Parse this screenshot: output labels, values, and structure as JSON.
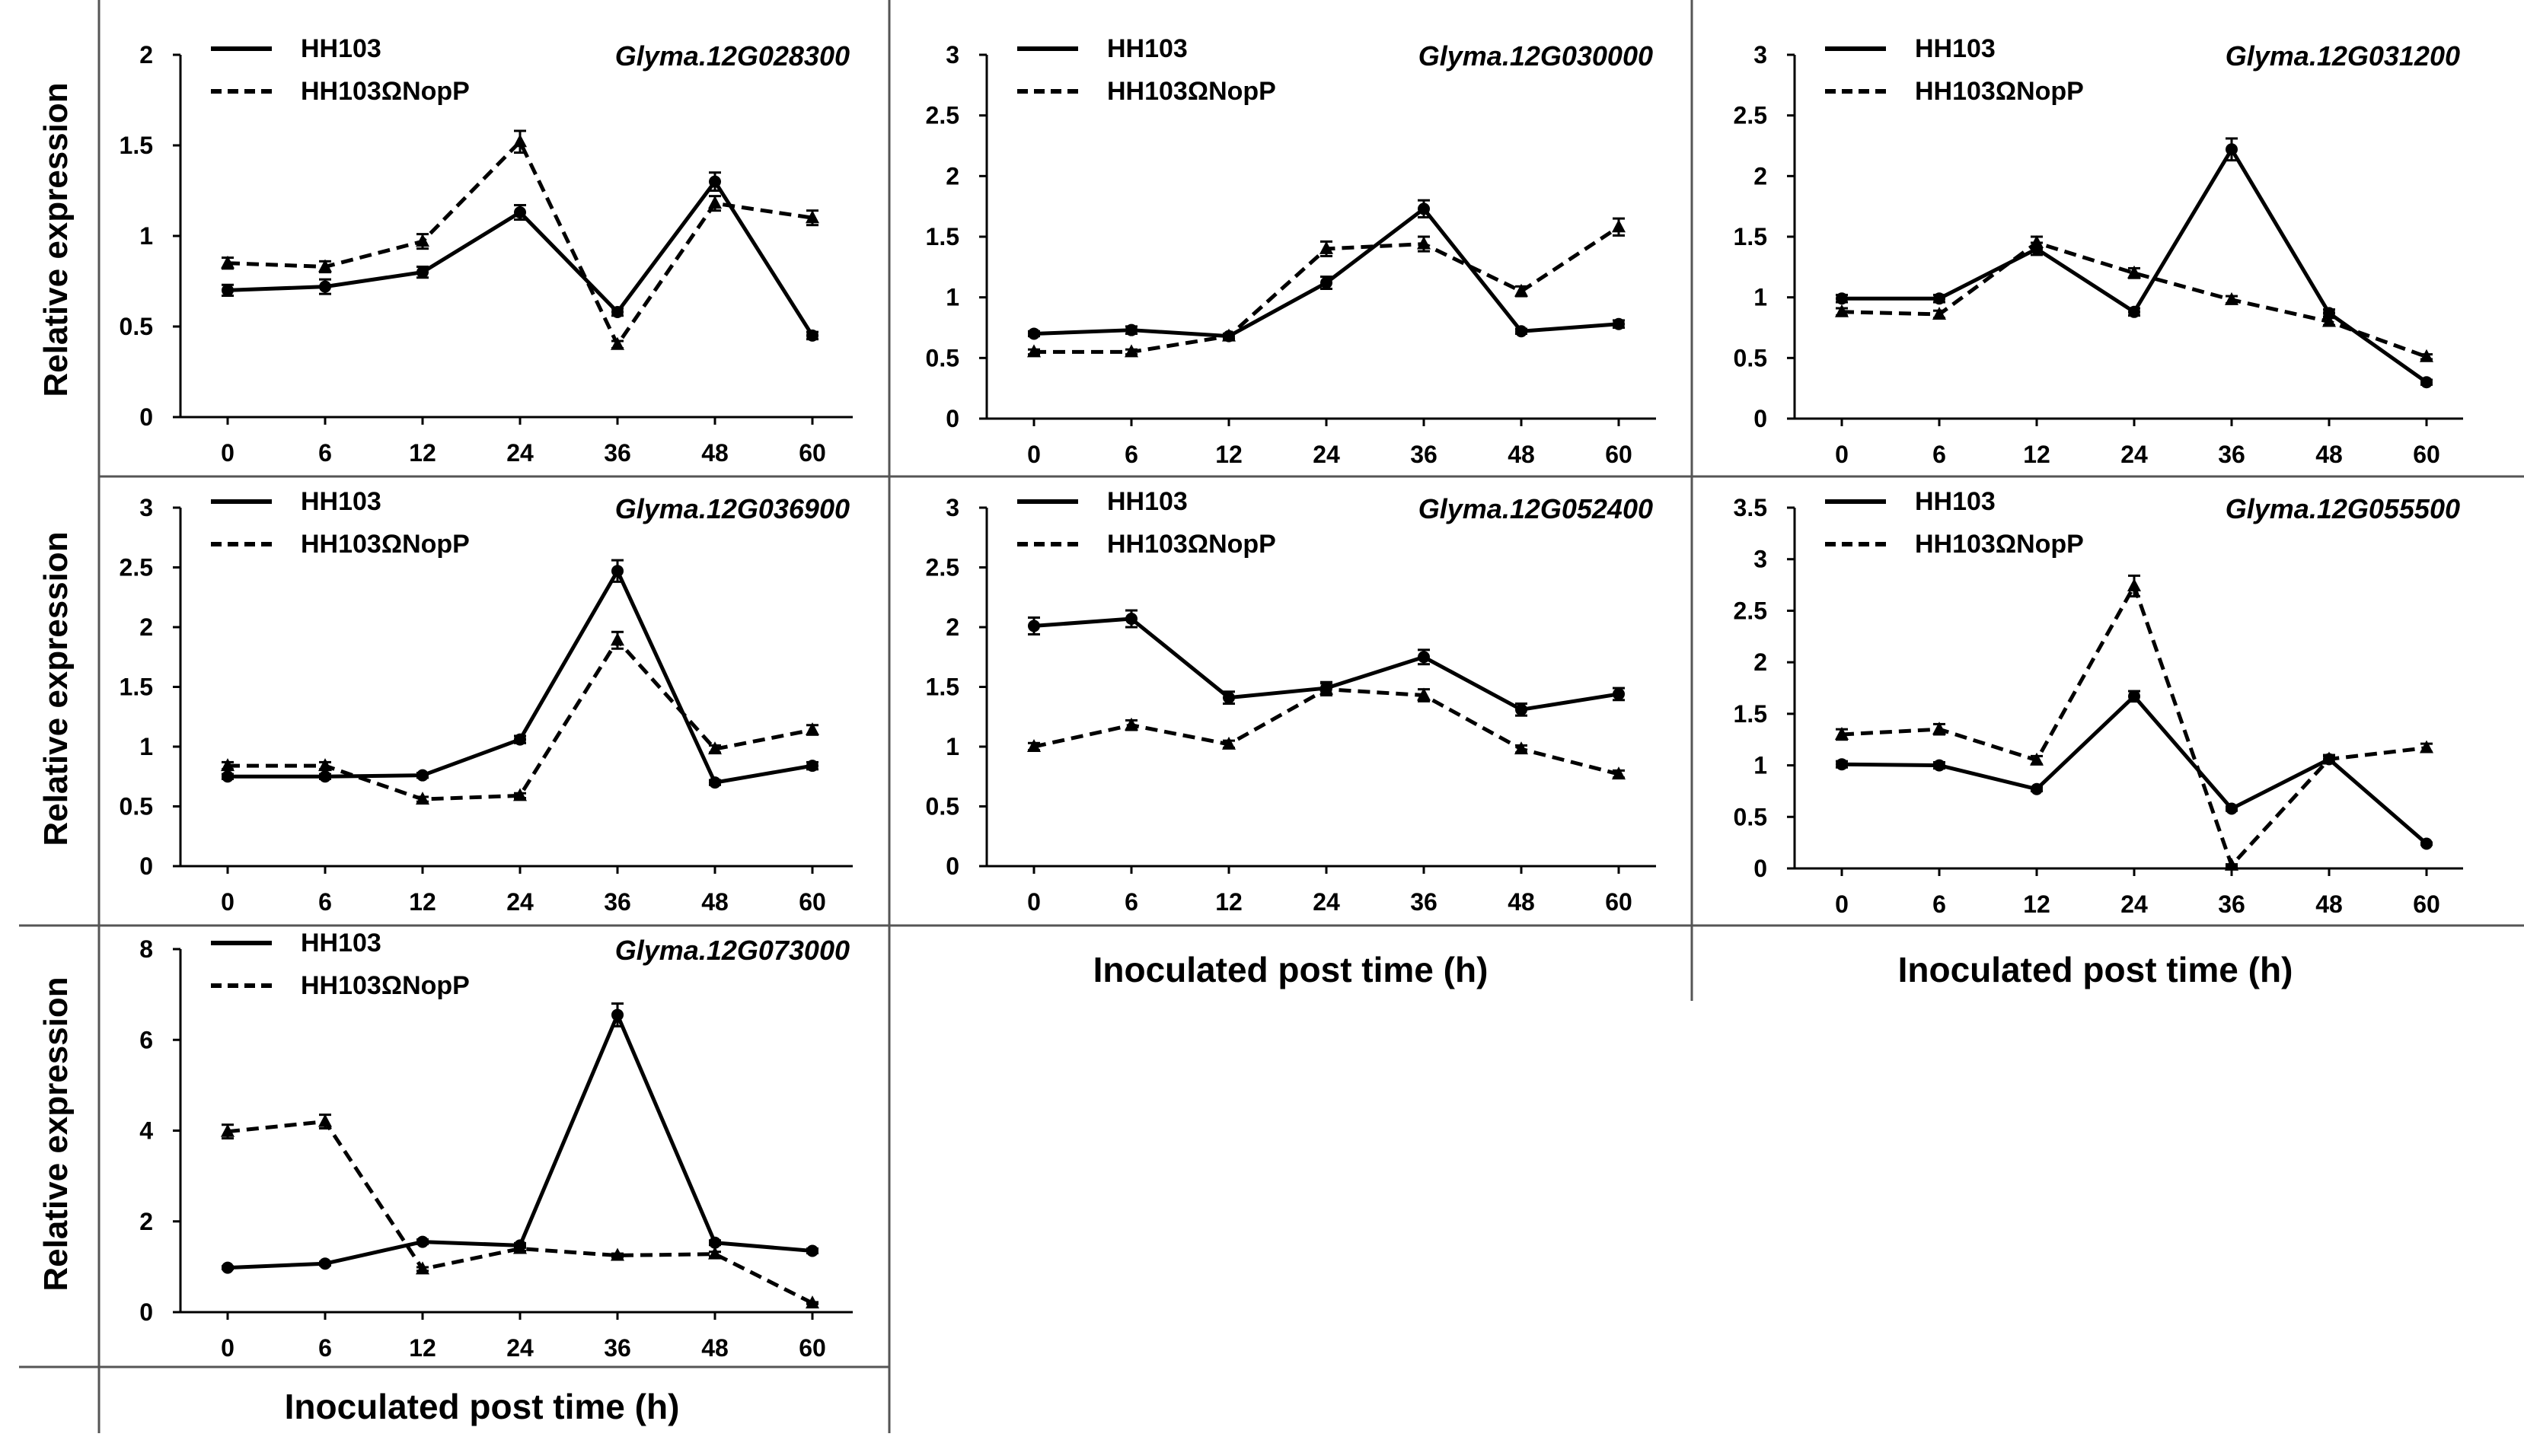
{
  "figure": {
    "y_label": "Relative expression",
    "x_label": "Inoculated post time (h)"
  },
  "legend": {
    "series_a": "HH103",
    "series_b": "HH103ΩNopP"
  },
  "chart_data": [
    {
      "type": "line",
      "title": "Glyma.12G028300",
      "categories": [
        "0",
        "6",
        "12",
        "24",
        "36",
        "48",
        "60"
      ],
      "ylim": [
        0,
        2
      ],
      "yticks": [
        0,
        0.5,
        1,
        1.5,
        2
      ],
      "ytick_labels": [
        "0",
        "0.5",
        "1",
        "1.5",
        "2"
      ],
      "series": [
        {
          "name": "HH103",
          "style": "solid",
          "values": [
            0.7,
            0.72,
            0.8,
            1.13,
            0.58,
            1.3,
            0.45
          ],
          "errors": [
            0.03,
            0.04,
            0.03,
            0.04,
            0.02,
            0.05,
            0.02
          ]
        },
        {
          "name": "HH103ΩNopP",
          "style": "dashed",
          "values": [
            0.85,
            0.83,
            0.97,
            1.52,
            0.4,
            1.18,
            1.1
          ],
          "errors": [
            0.03,
            0.03,
            0.04,
            0.06,
            0.02,
            0.04,
            0.04
          ]
        }
      ]
    },
    {
      "type": "line",
      "title": "Glyma.12G030000",
      "categories": [
        "0",
        "6",
        "12",
        "24",
        "36",
        "48",
        "60"
      ],
      "ylim": [
        0,
        3
      ],
      "yticks": [
        0,
        0.5,
        1,
        1.5,
        2,
        2.5,
        3
      ],
      "ytick_labels": [
        "0",
        "0.5",
        "1",
        "1.5",
        "2",
        "2.5",
        "3"
      ],
      "series": [
        {
          "name": "HH103",
          "style": "solid",
          "values": [
            0.7,
            0.73,
            0.68,
            1.12,
            1.73,
            0.72,
            0.78
          ],
          "errors": [
            0.02,
            0.03,
            0.02,
            0.05,
            0.07,
            0.02,
            0.03
          ]
        },
        {
          "name": "HH103ΩNopP",
          "style": "dashed",
          "values": [
            0.55,
            0.55,
            0.68,
            1.4,
            1.44,
            1.05,
            1.58
          ],
          "errors": [
            0.02,
            0.02,
            0.02,
            0.06,
            0.06,
            0.04,
            0.07
          ]
        }
      ]
    },
    {
      "type": "line",
      "title": "Glyma.12G031200",
      "categories": [
        "0",
        "6",
        "12",
        "24",
        "36",
        "48",
        "60"
      ],
      "ylim": [
        0,
        3
      ],
      "yticks": [
        0,
        0.5,
        1,
        1.5,
        2,
        2.5,
        3
      ],
      "ytick_labels": [
        "0",
        "0.5",
        "1",
        "1.5",
        "2",
        "2.5",
        "3"
      ],
      "series": [
        {
          "name": "HH103",
          "style": "solid",
          "values": [
            0.99,
            0.99,
            1.4,
            0.88,
            2.22,
            0.87,
            0.3
          ],
          "errors": [
            0.03,
            0.03,
            0.05,
            0.03,
            0.09,
            0.03,
            0.02
          ]
        },
        {
          "name": "HH103ΩNopP",
          "style": "dashed",
          "values": [
            0.88,
            0.86,
            1.45,
            1.2,
            0.98,
            0.8,
            0.51
          ],
          "errors": [
            0.03,
            0.03,
            0.05,
            0.04,
            0.03,
            0.03,
            0.02
          ]
        }
      ]
    },
    {
      "type": "line",
      "title": "Glyma.12G036900",
      "categories": [
        "0",
        "6",
        "12",
        "24",
        "36",
        "48",
        "60"
      ],
      "ylim": [
        0,
        3
      ],
      "yticks": [
        0,
        0.5,
        1,
        1.5,
        2,
        2.5,
        3
      ],
      "ytick_labels": [
        "0",
        "0.5",
        "1",
        "1.5",
        "2",
        "2.5",
        "3"
      ],
      "series": [
        {
          "name": "HH103",
          "style": "solid",
          "values": [
            0.75,
            0.75,
            0.76,
            1.06,
            2.47,
            0.7,
            0.84
          ],
          "errors": [
            0.02,
            0.02,
            0.02,
            0.03,
            0.09,
            0.02,
            0.03
          ]
        },
        {
          "name": "HH103ΩNopP",
          "style": "dashed",
          "values": [
            0.84,
            0.84,
            0.56,
            0.59,
            1.89,
            0.98,
            1.14
          ],
          "errors": [
            0.03,
            0.03,
            0.02,
            0.02,
            0.07,
            0.03,
            0.04
          ]
        }
      ]
    },
    {
      "type": "line",
      "title": "Glyma.12G052400",
      "categories": [
        "0",
        "6",
        "12",
        "24",
        "36",
        "48",
        "60"
      ],
      "ylim": [
        0,
        3
      ],
      "yticks": [
        0,
        0.5,
        1,
        1.5,
        2,
        2.5,
        3
      ],
      "ytick_labels": [
        "0",
        "0.5",
        "1",
        "1.5",
        "2",
        "2.5",
        "3"
      ],
      "series": [
        {
          "name": "HH103",
          "style": "solid",
          "values": [
            2.01,
            2.07,
            1.41,
            1.49,
            1.75,
            1.31,
            1.44
          ],
          "errors": [
            0.07,
            0.07,
            0.05,
            0.05,
            0.06,
            0.05,
            0.05
          ]
        },
        {
          "name": "HH103ΩNopP",
          "style": "dashed",
          "values": [
            1.0,
            1.18,
            1.02,
            1.48,
            1.43,
            0.98,
            0.77
          ],
          "errors": [
            0.03,
            0.04,
            0.03,
            0.05,
            0.05,
            0.03,
            0.03
          ]
        }
      ]
    },
    {
      "type": "line",
      "title": "Glyma.12G055500",
      "categories": [
        "0",
        "6",
        "12",
        "24",
        "36",
        "48",
        "60"
      ],
      "ylim": [
        0,
        3.5
      ],
      "yticks": [
        0,
        0.5,
        1,
        1.5,
        2,
        2.5,
        3,
        3.5
      ],
      "ytick_labels": [
        "0",
        "0.5",
        "1",
        "1.5",
        "2",
        "2.5",
        "3",
        "3.5"
      ],
      "series": [
        {
          "name": "HH103",
          "style": "solid",
          "values": [
            1.01,
            1.0,
            0.77,
            1.67,
            0.58,
            1.06,
            0.24
          ],
          "errors": [
            0.03,
            0.03,
            0.02,
            0.05,
            0.02,
            0.03,
            0.01
          ]
        },
        {
          "name": "HH103ΩNopP",
          "style": "dashed",
          "values": [
            1.3,
            1.35,
            1.05,
            2.74,
            0.03,
            1.06,
            1.17
          ],
          "errors": [
            0.05,
            0.05,
            0.04,
            0.1,
            0.01,
            0.04,
            0.04
          ]
        }
      ]
    },
    {
      "type": "line",
      "title": "Glyma.12G073000",
      "categories": [
        "0",
        "6",
        "12",
        "24",
        "36",
        "48",
        "60"
      ],
      "ylim": [
        0,
        8
      ],
      "yticks": [
        0,
        2,
        4,
        6,
        8
      ],
      "ytick_labels": [
        "0",
        "2",
        "4",
        "6",
        "8"
      ],
      "series": [
        {
          "name": "HH103",
          "style": "solid",
          "values": [
            0.98,
            1.07,
            1.55,
            1.47,
            6.55,
            1.53,
            1.35
          ],
          "errors": [
            0.03,
            0.04,
            0.05,
            0.05,
            0.25,
            0.05,
            0.05
          ]
        },
        {
          "name": "HH103ΩNopP",
          "style": "dashed",
          "values": [
            3.98,
            4.2,
            0.95,
            1.4,
            1.25,
            1.28,
            0.2
          ],
          "errors": [
            0.15,
            0.15,
            0.04,
            0.05,
            0.04,
            0.05,
            0.02
          ]
        }
      ]
    }
  ]
}
